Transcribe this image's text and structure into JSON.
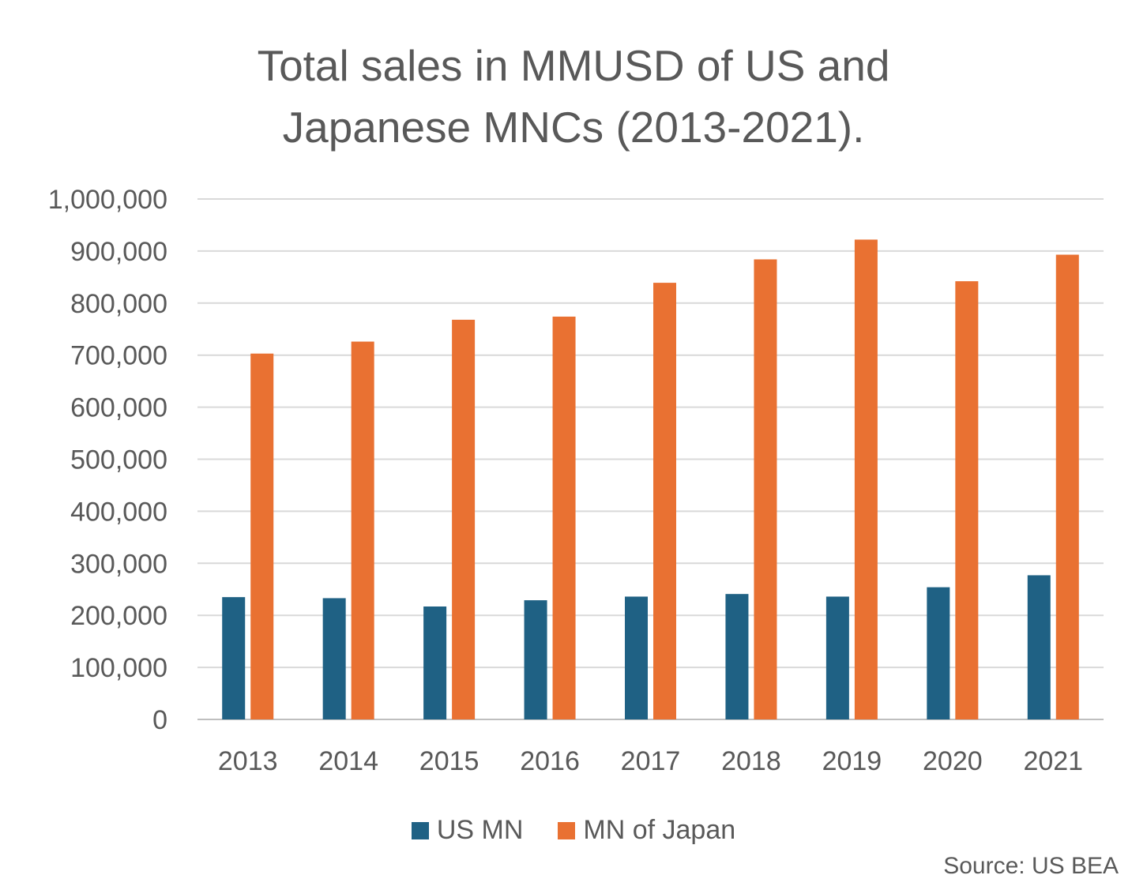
{
  "chart_data": {
    "type": "bar",
    "title_lines": [
      "Total sales in MMUSD of US and",
      "Japanese MNCs (2013-2021)."
    ],
    "categories": [
      "2013",
      "2014",
      "2015",
      "2016",
      "2017",
      "2018",
      "2019",
      "2020",
      "2021"
    ],
    "series": [
      {
        "name": "US MN",
        "color": "#1F6184",
        "values": [
          235000,
          233000,
          217000,
          229000,
          236000,
          241000,
          236000,
          254000,
          277000
        ]
      },
      {
        "name": "MN of Japan",
        "color": "#E97132",
        "values": [
          703000,
          726000,
          768000,
          774000,
          839000,
          884000,
          922000,
          842000,
          893000
        ]
      }
    ],
    "y_ticks": [
      "0",
      "100,000",
      "200,000",
      "300,000",
      "400,000",
      "500,000",
      "600,000",
      "700,000",
      "800,000",
      "900,000",
      "1,000,000"
    ],
    "ylim": [
      0,
      1000000
    ],
    "grid": true,
    "legend_position": "bottom"
  },
  "source_note": "Source: US BEA"
}
